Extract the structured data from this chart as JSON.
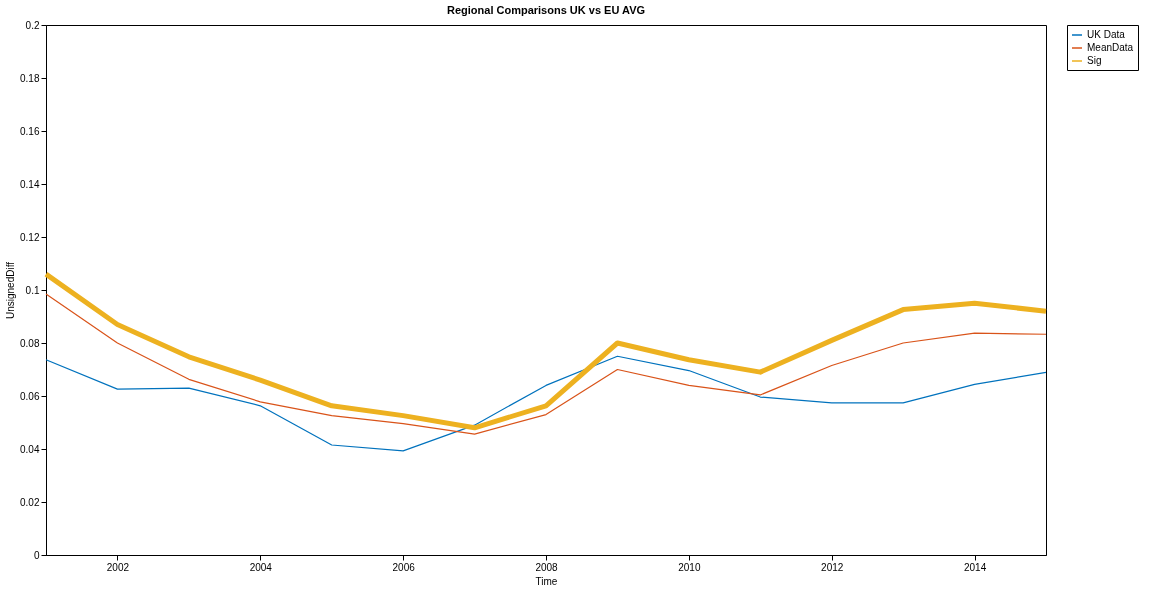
{
  "chart_data": {
    "type": "line",
    "title": "Regional Comparisons UK vs EU AVG",
    "xlabel": "Time",
    "ylabel": "UnsignedDiff",
    "x": [
      2001,
      2002,
      2003,
      2004,
      2005,
      2006,
      2007,
      2008,
      2009,
      2010,
      2011,
      2012,
      2013,
      2014,
      2015
    ],
    "series": [
      {
        "name": "UK Data",
        "color": "#0072bd",
        "values": [
          0.0737,
          0.0626,
          0.063,
          0.0563,
          0.0415,
          0.0393,
          0.049,
          0.064,
          0.075,
          0.0696,
          0.0596,
          0.0574,
          0.0574,
          0.0644,
          0.0689
        ]
      },
      {
        "name": "MeanData",
        "color": "#d95319",
        "values": [
          0.0985,
          0.08,
          0.0663,
          0.0578,
          0.0526,
          0.0496,
          0.0456,
          0.053,
          0.07,
          0.064,
          0.0604,
          0.0715,
          0.08,
          0.0837,
          0.0833
        ]
      },
      {
        "name": "Sig",
        "color": "#edb120",
        "values": [
          0.106,
          0.087,
          0.0748,
          0.066,
          0.0563,
          0.0526,
          0.048,
          0.0563,
          0.08,
          0.0737,
          0.069,
          0.081,
          0.0926,
          0.095,
          0.092
        ]
      }
    ],
    "xlim": [
      2001,
      2015
    ],
    "xticks": [
      2002,
      2004,
      2006,
      2008,
      2010,
      2012,
      2014
    ],
    "ylim": [
      0,
      0.2
    ],
    "yticks": [
      0,
      0.02,
      0.04,
      0.06,
      0.08,
      0.1,
      0.12,
      0.14,
      0.16,
      0.18,
      0.2
    ],
    "grid": false,
    "legend": "top right",
    "line_style": "solid",
    "marker": "none"
  }
}
